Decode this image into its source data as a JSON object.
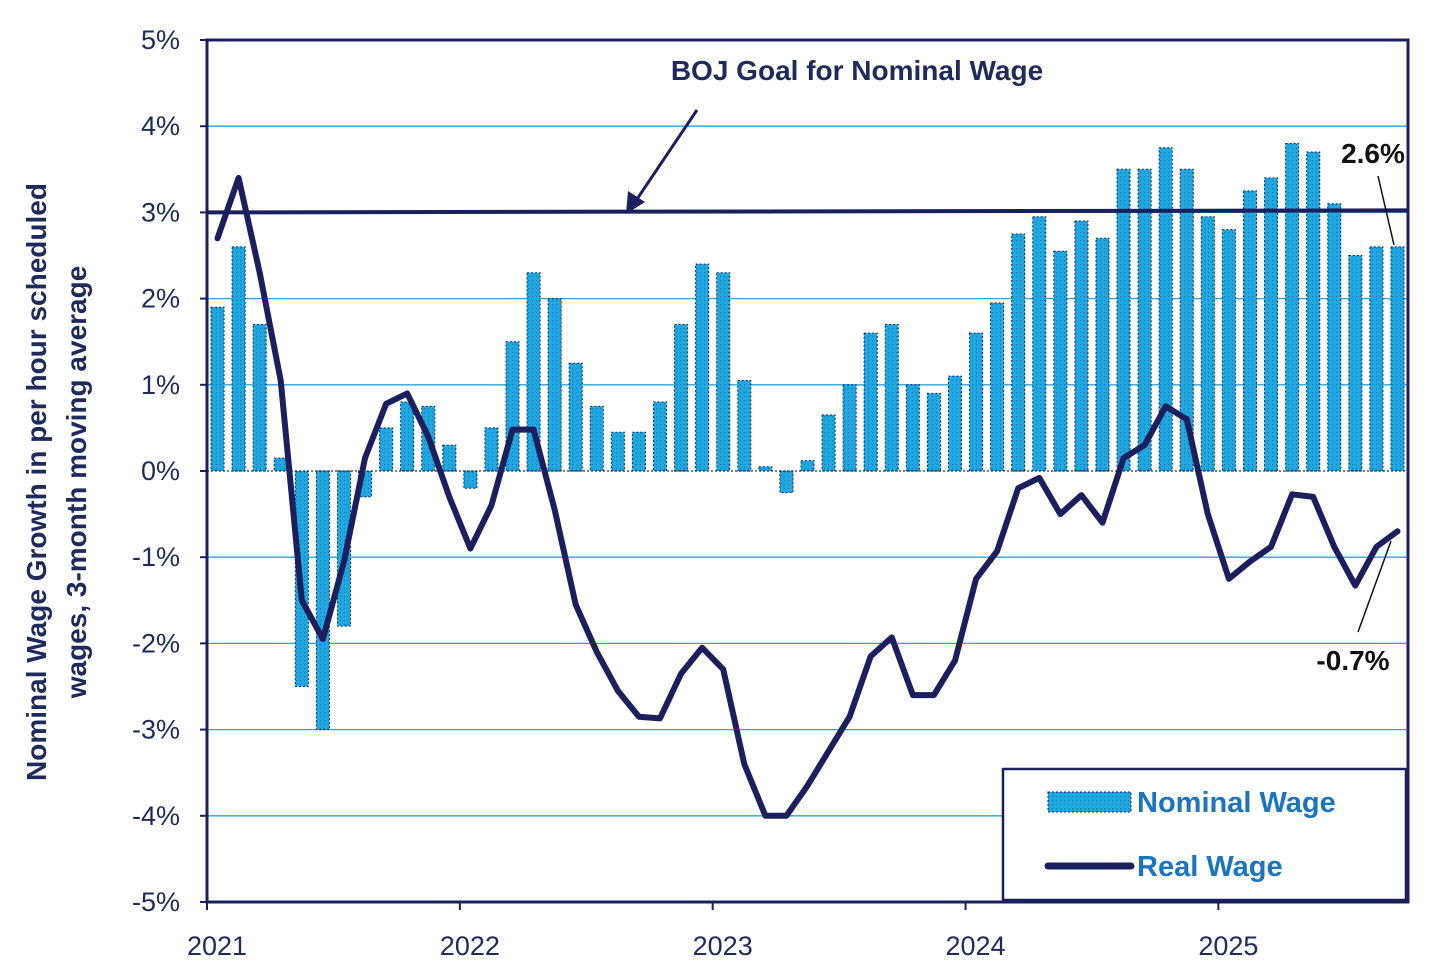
{
  "chart_data": {
    "type": "bar",
    "title": "",
    "ylabel_line1": "Nominal Wage Growth in per hour scheduled",
    "ylabel_line2": "wages, 3-month moving average",
    "xlabel": "",
    "ylim": [
      -5,
      5
    ],
    "y_ticks": [
      5,
      4,
      3,
      2,
      1,
      0,
      -1,
      -2,
      -3,
      -4,
      -5
    ],
    "y_tick_labels": [
      "5%",
      "4%",
      "3%",
      "2%",
      "1%",
      "0%",
      "-1%",
      "-2%",
      "-3%",
      "-4%",
      "-5%"
    ],
    "x_tick_labels": [
      "2021",
      "2022",
      "2023",
      "2024",
      "2025"
    ],
    "x_tick_month_index": [
      0,
      12,
      24,
      36,
      48
    ],
    "months_total": 57,
    "goal_value": 3.0,
    "goal_label": "BOJ Goal for Nominal Wage",
    "series": [
      {
        "name": "Nominal Wage",
        "kind": "bar",
        "color": "#1fa7e0",
        "values": [
          1.9,
          2.6,
          1.7,
          0.15,
          -2.5,
          -3.0,
          -1.8,
          -0.3,
          0.5,
          0.8,
          0.75,
          0.3,
          -0.2,
          0.5,
          1.5,
          2.3,
          2.0,
          1.25,
          0.75,
          0.45,
          0.45,
          0.8,
          1.7,
          2.4,
          2.3,
          1.05,
          0.05,
          -0.25,
          0.12,
          0.65,
          1.0,
          1.6,
          1.7,
          1.0,
          0.9,
          1.1,
          1.6,
          1.95,
          2.75,
          2.95,
          2.55,
          2.9,
          2.7,
          3.5,
          3.5,
          3.75,
          3.5,
          2.95,
          2.8,
          3.25,
          3.4,
          3.8,
          3.7,
          3.1,
          2.5,
          2.6,
          2.6
        ]
      },
      {
        "name": "Real Wage",
        "kind": "line",
        "color": "#1b1f5e",
        "values": [
          2.7,
          3.4,
          2.3,
          1.05,
          -1.5,
          -1.95,
          -1.05,
          0.15,
          0.78,
          0.9,
          0.4,
          -0.3,
          -0.9,
          -0.4,
          0.48,
          0.48,
          -0.45,
          -1.55,
          -2.1,
          -2.55,
          -2.85,
          -2.87,
          -2.35,
          -2.05,
          -2.3,
          -3.4,
          -4.0,
          -4.0,
          -3.65,
          -3.25,
          -2.85,
          -2.15,
          -1.93,
          -2.6,
          -2.6,
          -2.2,
          -1.25,
          -0.93,
          -0.2,
          -0.08,
          -0.5,
          -0.28,
          -0.6,
          0.15,
          0.3,
          0.75,
          0.6,
          -0.5,
          -1.25,
          -1.05,
          -0.88,
          -0.27,
          -0.3,
          -0.88,
          -1.33,
          -0.88,
          -0.7
        ]
      }
    ],
    "callouts": [
      {
        "label": "2.6%",
        "series": "Nominal Wage"
      },
      {
        "label": "-0.7%",
        "series": "Real Wage"
      }
    ],
    "legend": {
      "placement": "bottom-right",
      "entries": [
        "Nominal Wage",
        "Real Wage"
      ]
    }
  },
  "colors": {
    "axis": "#1b1f5e",
    "grid": "#2aa6d8",
    "bar_fill": "#1fa7e0",
    "bar_edge": "#0d2a6e",
    "line": "#1b1f5e",
    "legend_nominal_text": "#1a75c0",
    "legend_real_text": "#1a75c0"
  }
}
